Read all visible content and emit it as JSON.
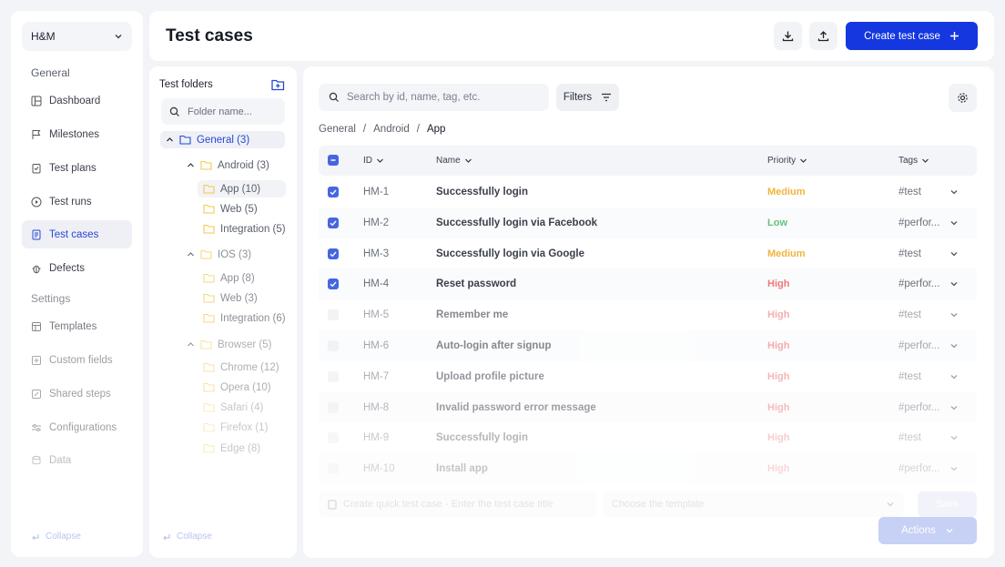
{
  "nav": {
    "workspace": "H&M",
    "section_general": "General",
    "section_settings": "Settings",
    "items": [
      {
        "label": "Dashboard",
        "icon": "dashboard-icon"
      },
      {
        "label": "Milestones",
        "icon": "flag-icon"
      },
      {
        "label": "Test plans",
        "icon": "clipboard-icon"
      },
      {
        "label": "Test runs",
        "icon": "play-icon"
      },
      {
        "label": "Test cases",
        "icon": "document-icon",
        "active": true
      },
      {
        "label": "Defects",
        "icon": "bug-icon"
      }
    ],
    "settings_items": [
      {
        "label": "Templates",
        "icon": "template-icon"
      },
      {
        "label": "Custom fields",
        "icon": "plus-square-icon"
      },
      {
        "label": "Shared steps",
        "icon": "edit-icon"
      },
      {
        "label": "Configurations",
        "icon": "sliders-icon"
      },
      {
        "label": "Data",
        "icon": "data-icon"
      }
    ],
    "collapse_label": "Collapse"
  },
  "header": {
    "title": "Test cases",
    "create_button": "Create test case"
  },
  "folders": {
    "title": "Test folders",
    "search_placeholder": "Folder name...",
    "collapse_label": "Collapse",
    "tree": [
      {
        "label": "General (3)",
        "level": 0,
        "expanded": true,
        "selected": true
      },
      {
        "label": "Android (3)",
        "level": 1,
        "expanded": true
      },
      {
        "label": "App (10)",
        "level": 2,
        "selected": true
      },
      {
        "label": "Web (5)",
        "level": 2
      },
      {
        "label": "Integration (5)",
        "level": 2
      },
      {
        "label": "IOS (3)",
        "level": 1,
        "expanded": true
      },
      {
        "label": "App (8)",
        "level": 2
      },
      {
        "label": "Web (3)",
        "level": 2
      },
      {
        "label": "Integration (6)",
        "level": 2
      },
      {
        "label": "Browser (5)",
        "level": 1,
        "expanded": true
      },
      {
        "label": "Chrome (12)",
        "level": 2
      },
      {
        "label": "Opera (10)",
        "level": 2
      },
      {
        "label": "Safari (4)",
        "level": 2
      },
      {
        "label": "Firefox (1)",
        "level": 2
      },
      {
        "label": "Edge (8)",
        "level": 2
      }
    ]
  },
  "toolbar": {
    "search_placeholder": "Search by id, name, tag, etc.",
    "filters_label": "Filters"
  },
  "breadcrumb": [
    "General",
    "Android",
    "App"
  ],
  "table": {
    "columns": [
      "ID",
      "Name",
      "Priority",
      "Tags"
    ],
    "rows": [
      {
        "id": "HM-1",
        "name": "Successfully login",
        "priority": "Medium",
        "tags": "#test",
        "checked": true
      },
      {
        "id": "HM-2",
        "name": "Successfully login via Facebook",
        "priority": "Low",
        "tags": "#perfor...",
        "checked": true
      },
      {
        "id": "HM-3",
        "name": "Successfully login via Google",
        "priority": "Medium",
        "tags": "#test",
        "checked": true
      },
      {
        "id": "HM-4",
        "name": "Reset password",
        "priority": "High",
        "tags": "#perfor...",
        "checked": true
      },
      {
        "id": "HM-5",
        "name": "Remember me",
        "priority": "High",
        "tags": "#test",
        "checked": false
      },
      {
        "id": "HM-6",
        "name": "Auto-login after signup",
        "priority": "High",
        "tags": "#perfor...",
        "checked": false
      },
      {
        "id": "HM-7",
        "name": "Upload profile picture",
        "priority": "High",
        "tags": "#test",
        "checked": false
      },
      {
        "id": "HM-8",
        "name": "Invalid password error message",
        "priority": "High",
        "tags": "#perfor...",
        "checked": false
      },
      {
        "id": "HM-9",
        "name": "Successfully login",
        "priority": "High",
        "tags": "#test",
        "checked": false
      },
      {
        "id": "HM-10",
        "name": "Install app",
        "priority": "High",
        "tags": "#perfor...",
        "checked": false
      }
    ]
  },
  "priority_colors": {
    "Medium": "#f0b43c",
    "Low": "#62c27a",
    "High": "#ef7a7a"
  },
  "quick_create": {
    "placeholder": "Create quick test case - Enter the test case title",
    "template_placeholder": "Choose the template",
    "button": "Save"
  },
  "actions_label": "Actions"
}
